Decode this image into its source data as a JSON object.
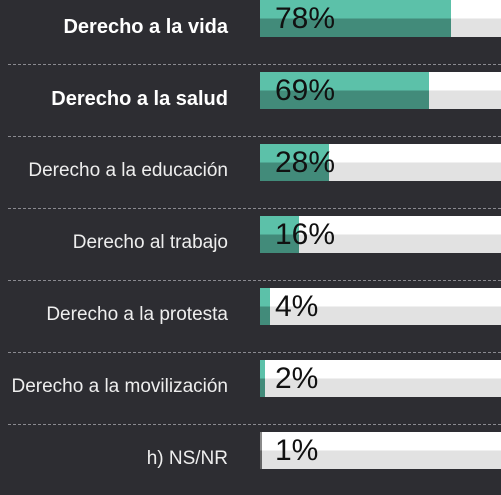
{
  "chart_data": {
    "type": "bar",
    "categories": [
      "Derecho a la vida",
      "Derecho a la salud",
      "Derecho a la educación",
      "Derecho al trabajo",
      "Derecho a la protesta",
      "Derecho a la movilización",
      "h) NS/NR"
    ],
    "values": [
      78,
      69,
      28,
      16,
      4,
      2,
      1
    ],
    "value_labels": [
      "78%",
      "69%",
      "28%",
      "16%",
      "4%",
      "2%",
      "1%"
    ],
    "emphasis": [
      true,
      true,
      false,
      false,
      false,
      false,
      false
    ],
    "colors": [
      "#5cc1a9",
      "#5cc1a9",
      "#5cc1a9",
      "#5cc1a9",
      "#5cc1a9",
      "#5cc1a9",
      "#8a8a8a"
    ],
    "xlim": [
      0,
      100
    ]
  }
}
